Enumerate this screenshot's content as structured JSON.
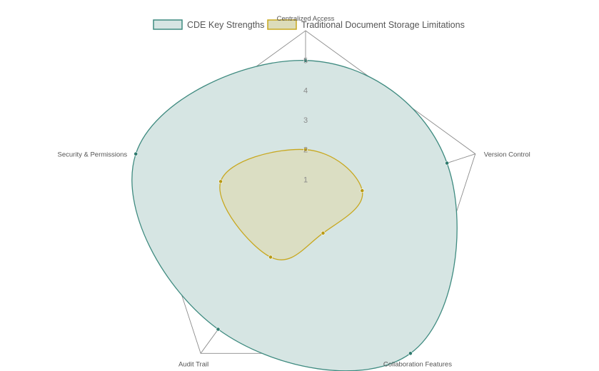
{
  "chart_data": {
    "type": "radar",
    "categories": [
      "Centralized Access",
      "Version Control",
      "Collaboration Features",
      "Audit Trail",
      "Security & Permissions"
    ],
    "series": [
      {
        "name": "CDE Key Strengths",
        "values": [
          5,
          5,
          6,
          5,
          6
        ],
        "fill": "#d6e5e3",
        "stroke": "#3f8b80",
        "point": "#2f7a6e"
      },
      {
        "name": "Traditional Document Storage Limitations",
        "values": [
          2,
          2,
          1,
          2,
          3
        ],
        "fill": "#dcdcba",
        "stroke": "#c8a820",
        "point": "#b89a15"
      }
    ],
    "r_range": [
      0,
      6
    ],
    "ticks": [
      "1",
      "2",
      "3",
      "4",
      "5"
    ],
    "tick_values": [
      1,
      2,
      3,
      4,
      5
    ],
    "grid": true,
    "legend_position": "top-center",
    "colors": {
      "grid": "#8c8c8c",
      "tick": "#8a8a8a",
      "label": "#555555"
    }
  }
}
